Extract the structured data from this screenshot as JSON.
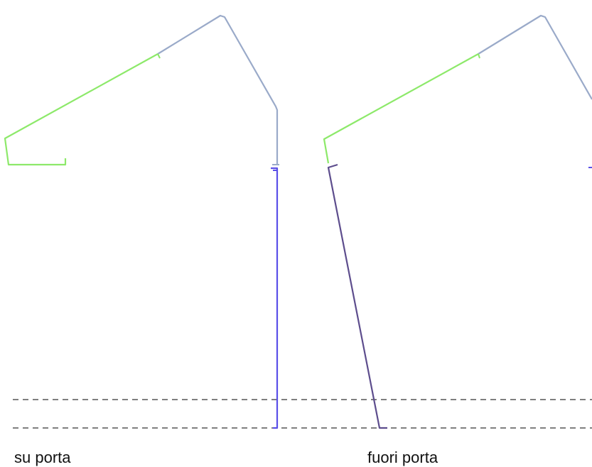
{
  "captions": {
    "left": "su porta",
    "right": "fuori porta"
  },
  "colors": {
    "green": "#8de96a",
    "gray_blue": "#9aaac9",
    "blue": "#5a4fe8",
    "purple": "#5d4d8d",
    "dash": "#333333"
  }
}
